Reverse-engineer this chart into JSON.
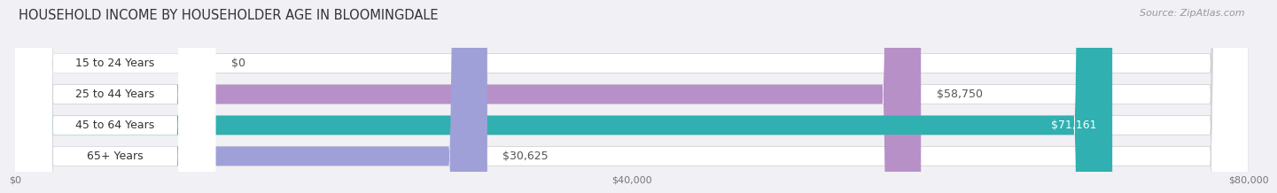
{
  "title": "HOUSEHOLD INCOME BY HOUSEHOLDER AGE IN BLOOMINGDALE",
  "source": "Source: ZipAtlas.com",
  "categories": [
    "15 to 24 Years",
    "25 to 44 Years",
    "45 to 64 Years",
    "65+ Years"
  ],
  "values": [
    0,
    58750,
    71161,
    30625
  ],
  "labels": [
    "$0",
    "$58,750",
    "$71,161",
    "$30,625"
  ],
  "bar_colors": [
    "#a8c4e0",
    "#b890c8",
    "#30b0b0",
    "#a0a0d8"
  ],
  "xlim": [
    0,
    80000
  ],
  "xticks": [
    0,
    40000,
    80000
  ],
  "xticklabels": [
    "$0",
    "$40,000",
    "$80,000"
  ],
  "title_fontsize": 10.5,
  "source_fontsize": 8,
  "label_fontsize": 9,
  "cat_fontsize": 9,
  "bar_height": 0.62,
  "background_color": "#f0f0f5"
}
